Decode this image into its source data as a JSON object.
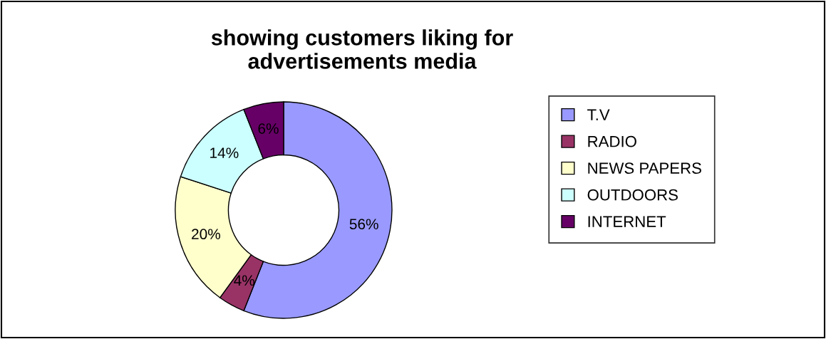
{
  "chart_data": {
    "type": "donut",
    "title": "showing customers liking for\nadvertisements media",
    "categories": [
      "T.V",
      "RADIO",
      "NEWS PAPERS",
      "OUTDOORS",
      "INTERNET"
    ],
    "values": [
      56,
      4,
      20,
      14,
      6
    ],
    "colors": [
      "#9999ff",
      "#993366",
      "#ffffcc",
      "#ccffff",
      "#660066"
    ],
    "value_labels": [
      "56%",
      "4%",
      "20%",
      "14%",
      "6%"
    ],
    "legend": "right"
  }
}
